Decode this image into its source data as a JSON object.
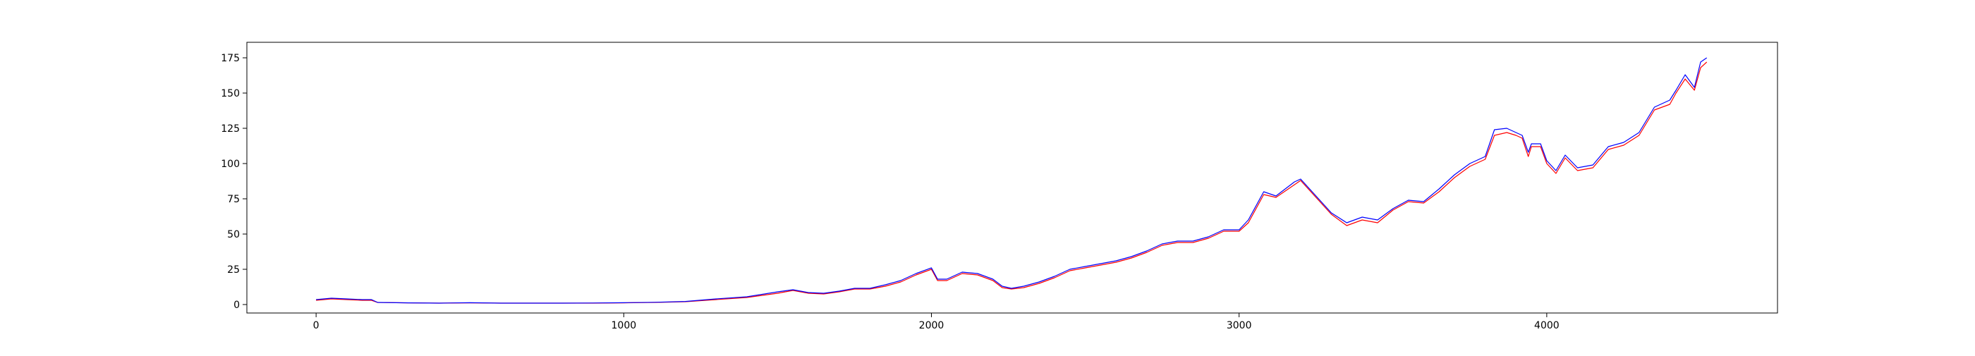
{
  "chart_data": {
    "type": "line",
    "title": "",
    "xlabel": "",
    "ylabel": "",
    "xlim": [
      -225,
      4750
    ],
    "ylim": [
      -6,
      186
    ],
    "grid": false,
    "legend": "none",
    "x_ticks": [
      0,
      1000,
      2000,
      3000,
      4000
    ],
    "x_tick_labels": [
      "0",
      "1000",
      "2000",
      "3000",
      "4000"
    ],
    "y_ticks": [
      0,
      25,
      50,
      75,
      100,
      125,
      150,
      175
    ],
    "y_tick_labels": [
      "0",
      "25",
      "50",
      "75",
      "100",
      "125",
      "150",
      "175"
    ],
    "series": [
      {
        "color": "#ff0000",
        "x": [
          0,
          50,
          100,
          150,
          180,
          200,
          300,
          400,
          500,
          600,
          700,
          800,
          900,
          1000,
          1100,
          1200,
          1300,
          1400,
          1500,
          1550,
          1600,
          1650,
          1700,
          1750,
          1800,
          1850,
          1900,
          1950,
          2000,
          2020,
          2050,
          2100,
          2150,
          2200,
          2230,
          2260,
          2300,
          2350,
          2400,
          2450,
          2500,
          2550,
          2600,
          2650,
          2700,
          2750,
          2800,
          2850,
          2900,
          2950,
          3000,
          3030,
          3080,
          3120,
          3180,
          3200,
          3250,
          3300,
          3350,
          3400,
          3450,
          3500,
          3550,
          3600,
          3650,
          3700,
          3750,
          3800,
          3830,
          3870,
          3900,
          3920,
          3940,
          3950,
          3980,
          4000,
          4030,
          4060,
          4100,
          4150,
          4200,
          4250,
          4300,
          4350,
          4400,
          4420,
          4450,
          4480,
          4500,
          4520
        ],
        "y": [
          3,
          4,
          3.5,
          3,
          3,
          1.5,
          1.2,
          1,
          1.2,
          1,
          1,
          1,
          1,
          1.2,
          1.5,
          2,
          3.5,
          5,
          8,
          10,
          8,
          7.5,
          9,
          11,
          11,
          13,
          16,
          21,
          25,
          17,
          17,
          22,
          21,
          17,
          12,
          11,
          12,
          15,
          19,
          24,
          26,
          28,
          30,
          33,
          37,
          42,
          44,
          44,
          47,
          52,
          52,
          58,
          78,
          76,
          85,
          88,
          76,
          64,
          56,
          60,
          58,
          67,
          73,
          72,
          80,
          90,
          98,
          103,
          120,
          122,
          120,
          118,
          105,
          112,
          112,
          100,
          93,
          104,
          95,
          97,
          110,
          113,
          120,
          138,
          142,
          150,
          160,
          152,
          168,
          172
        ]
      },
      {
        "color": "#0000ff",
        "x": [
          0,
          50,
          100,
          150,
          180,
          200,
          300,
          400,
          500,
          600,
          700,
          800,
          900,
          1000,
          1100,
          1200,
          1300,
          1400,
          1500,
          1550,
          1600,
          1650,
          1700,
          1750,
          1800,
          1850,
          1900,
          1950,
          2000,
          2020,
          2050,
          2100,
          2150,
          2200,
          2230,
          2260,
          2300,
          2350,
          2400,
          2450,
          2500,
          2550,
          2600,
          2650,
          2700,
          2750,
          2800,
          2850,
          2900,
          2950,
          3000,
          3030,
          3080,
          3120,
          3180,
          3200,
          3250,
          3300,
          3350,
          3400,
          3450,
          3500,
          3550,
          3600,
          3650,
          3700,
          3750,
          3800,
          3830,
          3870,
          3900,
          3920,
          3940,
          3950,
          3980,
          4000,
          4030,
          4060,
          4100,
          4150,
          4200,
          4250,
          4300,
          4350,
          4400,
          4420,
          4450,
          4480,
          4500,
          4520
        ],
        "y": [
          3.5,
          4.5,
          4,
          3.5,
          3.5,
          1.5,
          1.2,
          1,
          1.3,
          1,
          1,
          1,
          1.1,
          1.3,
          1.6,
          2.2,
          4,
          5.5,
          9,
          10.5,
          8.5,
          8,
          9.5,
          11.5,
          11.5,
          14,
          17,
          22,
          26,
          18,
          18,
          23,
          22,
          18,
          13,
          11.5,
          13,
          16,
          20,
          25,
          27,
          29,
          31,
          34,
          38,
          43,
          45,
          45,
          48,
          53,
          53,
          60,
          80,
          77,
          87,
          89,
          77,
          65,
          58,
          62,
          60,
          68,
          74,
          73,
          82,
          92,
          100,
          105,
          124,
          125,
          122,
          120,
          108,
          114,
          114,
          102,
          95,
          106,
          97,
          99,
          112,
          115,
          122,
          140,
          145,
          152,
          163,
          154,
          172,
          175
        ]
      }
    ]
  }
}
